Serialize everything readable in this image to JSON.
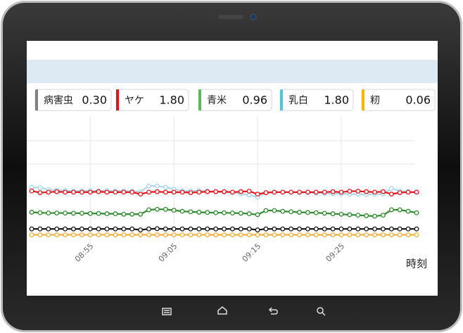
{
  "chart_data": {
    "type": "line",
    "x_label": "時刻",
    "x": [
      "08:48",
      "08:49",
      "08:50",
      "08:51",
      "08:52",
      "08:53",
      "08:54",
      "08:55",
      "08:56",
      "08:57",
      "08:58",
      "08:59",
      "09:00",
      "09:01",
      "09:02",
      "09:03",
      "09:04",
      "09:05",
      "09:06",
      "09:07",
      "09:08",
      "09:09",
      "09:10",
      "09:11",
      "09:12",
      "09:13",
      "09:14",
      "09:15",
      "09:16",
      "09:17",
      "09:18",
      "09:19",
      "09:20",
      "09:21",
      "09:22",
      "09:23",
      "09:24",
      "09:25",
      "09:26",
      "09:27",
      "09:28",
      "09:29",
      "09:30",
      "09:31",
      "09:32",
      "09:33",
      "09:34"
    ],
    "xlim": [
      "08:48",
      "09:34"
    ],
    "xticks": [
      "08:55",
      "09:05",
      "09:15",
      "09:25"
    ],
    "ylim": [
      -0.7,
      4.9
    ],
    "grid": true,
    "series": [
      {
        "name": "病害虫",
        "color": "#111111",
        "legend_color": "#808080",
        "current": {
          "value": 0.3,
          "label": "0.30"
        },
        "values": [
          0.3,
          0.3,
          0.3,
          0.3,
          0.3,
          0.3,
          0.3,
          0.3,
          0.3,
          0.3,
          0.3,
          0.3,
          0.3,
          0.26,
          0.3,
          0.31,
          0.3,
          0.3,
          0.3,
          0.3,
          0.3,
          0.3,
          0.3,
          0.3,
          0.3,
          0.3,
          0.3,
          0.26,
          0.3,
          0.3,
          0.3,
          0.3,
          0.3,
          0.3,
          0.3,
          0.3,
          0.3,
          0.3,
          0.3,
          0.3,
          0.3,
          0.3,
          0.3,
          0.3,
          0.3,
          0.3,
          0.3
        ]
      },
      {
        "name": "ヤケ",
        "color": "#e8141c",
        "legend_color": "#e0141e",
        "current": {
          "value": 1.8,
          "label": "1.80"
        },
        "values": [
          1.85,
          1.78,
          1.8,
          1.82,
          1.8,
          1.8,
          1.8,
          1.8,
          1.82,
          1.8,
          1.8,
          1.8,
          1.8,
          1.72,
          1.8,
          1.82,
          1.8,
          1.8,
          1.8,
          1.78,
          1.8,
          1.82,
          1.82,
          1.82,
          1.8,
          1.82,
          1.84,
          1.72,
          1.78,
          1.8,
          1.8,
          1.8,
          1.8,
          1.8,
          1.8,
          1.8,
          1.82,
          1.8,
          1.84,
          1.84,
          1.82,
          1.8,
          1.82,
          1.72,
          1.78,
          1.8,
          1.8
        ]
      },
      {
        "name": "青米",
        "color": "#2e8b2e",
        "legend_color": "#5cb85c",
        "current": {
          "value": 0.96,
          "label": "0.96"
        },
        "values": [
          0.98,
          0.96,
          0.95,
          0.95,
          0.95,
          0.94,
          0.94,
          0.93,
          0.93,
          0.92,
          0.92,
          0.9,
          0.9,
          0.9,
          1.08,
          1.1,
          1.1,
          1.06,
          1.02,
          1.0,
          0.98,
          0.97,
          0.96,
          0.96,
          0.95,
          0.94,
          0.92,
          0.88,
          1.05,
          1.05,
          1.02,
          1.0,
          0.98,
          0.97,
          0.96,
          0.94,
          0.92,
          0.9,
          0.88,
          0.86,
          0.84,
          0.82,
          0.86,
          1.08,
          1.08,
          1.02,
          0.96
        ]
      },
      {
        "name": "乳白",
        "color": "#a8d8ea",
        "legend_color": "#4ec6db",
        "current": {
          "value": 1.8,
          "label": "1.80"
        },
        "values": [
          2.0,
          1.98,
          1.9,
          1.88,
          1.86,
          1.85,
          1.85,
          1.86,
          1.85,
          1.86,
          1.85,
          1.85,
          1.84,
          1.82,
          2.05,
          2.05,
          2.0,
          1.92,
          1.85,
          1.85,
          1.86,
          1.84,
          1.82,
          1.8,
          1.78,
          1.74,
          1.68,
          1.6,
          1.78,
          1.8,
          1.8,
          1.79,
          1.78,
          1.78,
          1.76,
          1.76,
          1.74,
          1.74,
          1.72,
          1.72,
          1.7,
          1.72,
          1.72,
          1.95,
          1.85,
          1.82,
          1.8
        ]
      },
      {
        "name": "籾",
        "color": "#f0b040",
        "legend_color": "#f5b800",
        "current": {
          "value": 0.06,
          "label": "0.06"
        },
        "values": [
          0.06,
          0.06,
          0.06,
          0.06,
          0.06,
          0.06,
          0.06,
          0.06,
          0.06,
          0.06,
          0.06,
          0.06,
          0.06,
          0.06,
          0.06,
          0.06,
          0.06,
          0.06,
          0.06,
          0.06,
          0.06,
          0.06,
          0.06,
          0.06,
          0.06,
          0.06,
          0.06,
          0.06,
          0.06,
          0.06,
          0.06,
          0.06,
          0.06,
          0.06,
          0.06,
          0.06,
          0.06,
          0.06,
          0.06,
          0.06,
          0.06,
          0.06,
          0.06,
          0.06,
          0.06,
          0.06,
          0.06
        ]
      }
    ]
  }
}
